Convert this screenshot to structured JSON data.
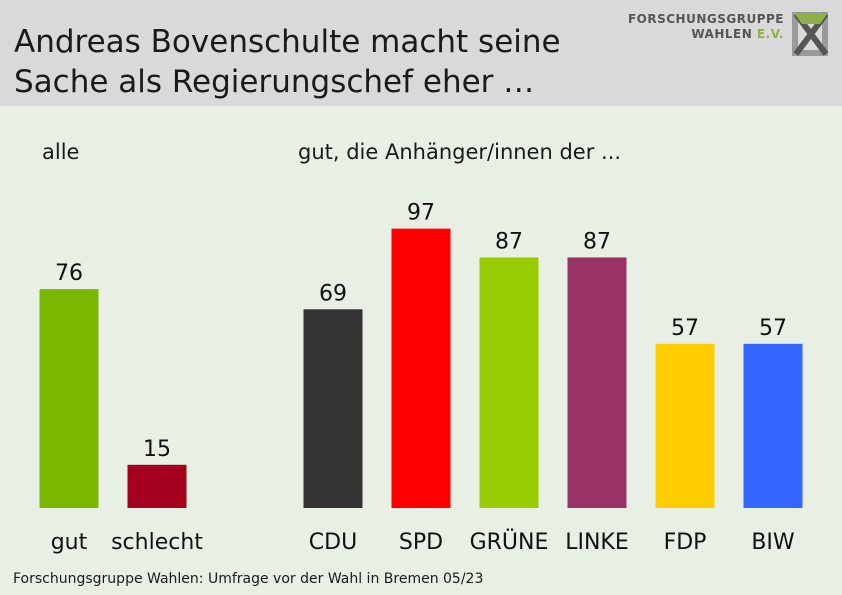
{
  "header": {
    "title_line1": "Andreas Bovenschulte macht seine",
    "title_line2": "Sache als Regierungschef eher …",
    "logo_line1": "FORSCHUNGSGRUPPE",
    "logo_line2a": "WAHLEN ",
    "logo_line2b": "E.V."
  },
  "chart_data": [
    {
      "type": "bar",
      "title": "alle",
      "categories": [
        "gut",
        "schlecht"
      ],
      "values": [
        76,
        15
      ],
      "colors": [
        "#7ab800",
        "#a5001e"
      ],
      "ylim": [
        0,
        100
      ]
    },
    {
      "type": "bar",
      "title": "gut, die Anhänger/innen der ...",
      "categories": [
        "CDU",
        "SPD",
        "GRÜNE",
        "LINKE",
        "FDP",
        "BIW"
      ],
      "values": [
        69,
        97,
        87,
        87,
        57,
        57
      ],
      "colors": [
        "#333333",
        "#ff0000",
        "#99cc00",
        "#993366",
        "#ffcc00",
        "#3366ff"
      ],
      "ylim": [
        0,
        100
      ]
    }
  ],
  "footer": "Forschungsgruppe Wahlen: Umfrage vor der Wahl in Bremen 05/23"
}
